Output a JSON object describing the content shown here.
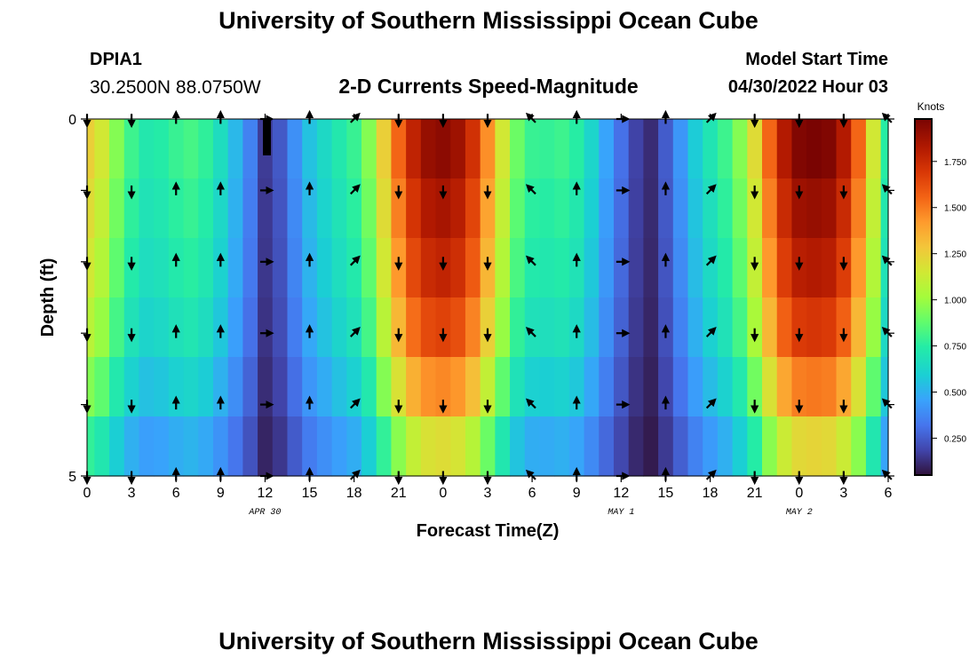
{
  "header": {
    "title": "University of Southern Mississippi Ocean Cube",
    "station": "DPIA1",
    "coordinates": "30.2500N  88.0750W",
    "subtitle": "2-D Currents Speed-Magnitude",
    "model_start_label": "Model Start Time",
    "model_start_value": "04/30/2022 Hour 03"
  },
  "footer": {
    "title": "University of Southern Mississippi Ocean Cube"
  },
  "chart_data": {
    "type": "heatmap",
    "title": "2-D Currents Speed-Magnitude",
    "xlabel": "Forecast Time(Z)",
    "ylabel": "Depth (ft)",
    "x_tick_labels": [
      "0",
      "3",
      "6",
      "9",
      "12",
      "15",
      "18",
      "21",
      "0",
      "3",
      "6",
      "9",
      "12",
      "15",
      "18",
      "21",
      "0",
      "3",
      "6"
    ],
    "date_labels": [
      {
        "text": "APR 30",
        "tick_index": 4
      },
      {
        "text": "MAY 1",
        "tick_index": 12
      },
      {
        "text": "MAY 2",
        "tick_index": 16
      }
    ],
    "y_tick_labels": [
      {
        "text": "0",
        "depth": 0
      },
      {
        "text": "5",
        "depth": 5
      }
    ],
    "ylim": [
      0,
      5
    ],
    "colorbar": {
      "label": "Knots",
      "range": [
        0.05,
        1.98
      ],
      "ticks": [
        "0.250",
        "0.500",
        "0.750",
        "1.000",
        "1.250",
        "1.500",
        "1.750"
      ],
      "tick_values": [
        0.25,
        0.5,
        0.75,
        1.0,
        1.25,
        1.5,
        1.75
      ]
    },
    "hours": [
      0,
      1,
      2,
      3,
      4,
      5,
      6,
      7,
      8,
      9,
      10,
      11,
      12,
      13,
      14,
      15,
      16,
      17,
      18,
      19,
      20,
      21,
      22,
      23,
      24,
      25,
      26,
      27,
      28,
      29,
      30,
      31,
      32,
      33,
      34,
      35,
      36,
      37,
      38,
      39,
      40,
      41,
      42,
      43,
      44,
      45,
      46,
      47,
      48,
      49,
      50,
      51,
      52,
      53,
      54
    ],
    "surface_speed_knots": [
      1.25,
      1.15,
      0.95,
      0.8,
      0.72,
      0.74,
      0.79,
      0.82,
      0.77,
      0.66,
      0.52,
      0.36,
      0.16,
      0.24,
      0.4,
      0.55,
      0.64,
      0.72,
      0.79,
      0.95,
      1.25,
      1.55,
      1.78,
      1.9,
      1.93,
      1.88,
      1.72,
      1.45,
      1.15,
      0.9,
      0.79,
      0.78,
      0.8,
      0.75,
      0.62,
      0.46,
      0.31,
      0.18,
      0.12,
      0.25,
      0.42,
      0.58,
      0.7,
      0.8,
      0.95,
      1.2,
      1.55,
      1.82,
      1.96,
      1.98,
      1.96,
      1.82,
      1.55,
      1.15,
      0.75
    ],
    "depth_factor_by_level": [
      1.0,
      0.96,
      0.92,
      0.86,
      0.76,
      0.62
    ],
    "arrow_depths": [
      0,
      1,
      2,
      3,
      4,
      5
    ],
    "arrow_hours": [
      0,
      3,
      6,
      9,
      12,
      15,
      18,
      21,
      24,
      27,
      30,
      33,
      36,
      39,
      42,
      45,
      48,
      51,
      54
    ],
    "arrow_direction_deg": [
      180,
      180,
      0,
      0,
      90,
      0,
      45,
      180,
      180,
      180,
      315,
      0,
      90,
      0,
      45,
      180,
      180,
      180,
      315
    ]
  }
}
